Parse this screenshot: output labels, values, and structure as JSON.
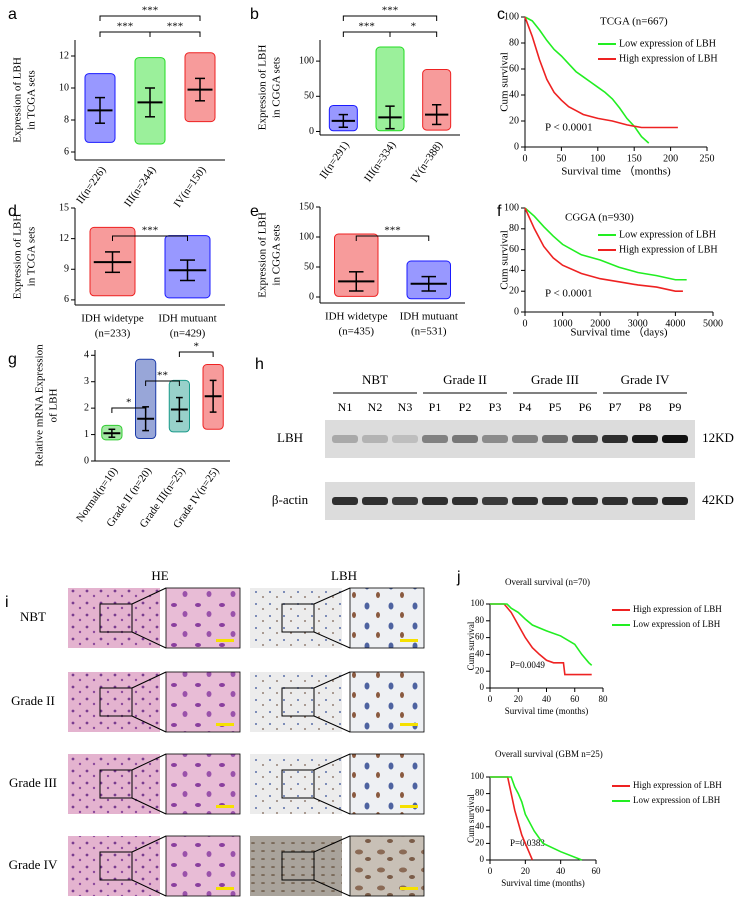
{
  "chart_data": [
    {
      "panel": "a",
      "type": "dot",
      "ylabel": [
        "Expression of LBH",
        "in TCGA sets"
      ],
      "categories": [
        "II(n=226)",
        "III(n=244)",
        "IV(n=150)"
      ],
      "colors": [
        "#1a1aff",
        "#22dd22",
        "#ee2222"
      ],
      "means": [
        8.6,
        9.1,
        9.9
      ],
      "sds": [
        0.8,
        0.9,
        0.7
      ],
      "ranges": [
        [
          6.6,
          10.9
        ],
        [
          6.5,
          11.9
        ],
        [
          7.9,
          12.2
        ]
      ],
      "ylim": [
        5.5,
        13
      ],
      "yticks": [
        6,
        8,
        10,
        12
      ],
      "comparisons": [
        {
          "groups": [
            0,
            1
          ],
          "label": "***"
        },
        {
          "groups": [
            1,
            2
          ],
          "label": "***"
        },
        {
          "groups": [
            0,
            2
          ],
          "label": "***"
        }
      ]
    },
    {
      "panel": "b",
      "type": "dot",
      "ylabel": [
        "Expression of LBH",
        "in CGGA sets"
      ],
      "categories": [
        "II(n=291)",
        "III(n=334)",
        "IV(n=388)"
      ],
      "colors": [
        "#1a1aff",
        "#22dd22",
        "#ee2222"
      ],
      "means": [
        15,
        20,
        24
      ],
      "sds": [
        9,
        16,
        14
      ],
      "ranges": [
        [
          1,
          37
        ],
        [
          1,
          120
        ],
        [
          2,
          88
        ]
      ],
      "ylim": [
        -5,
        130
      ],
      "yticks": [
        0,
        50,
        100
      ],
      "comparisons": [
        {
          "groups": [
            0,
            1
          ],
          "label": "***"
        },
        {
          "groups": [
            1,
            2
          ],
          "label": "*"
        },
        {
          "groups": [
            0,
            2
          ],
          "label": "***"
        }
      ]
    },
    {
      "panel": "c",
      "type": "survival",
      "title": "TCGA (n=667)",
      "xlabel": "Survival time （months)",
      "ylabel": "Cum survival",
      "annotation": "P < 0.0001",
      "xlim": [
        0,
        250
      ],
      "xticks": [
        0,
        50,
        100,
        150,
        200,
        250
      ],
      "ylim": [
        0,
        100
      ],
      "yticks": [
        0,
        20,
        40,
        60,
        80,
        100
      ],
      "series": [
        {
          "name": "Low expression of LBH",
          "color": "#22ee22",
          "x": [
            0,
            10,
            20,
            30,
            40,
            50,
            60,
            70,
            80,
            90,
            100,
            110,
            120,
            130,
            140,
            150,
            160,
            170
          ],
          "values": [
            100,
            97,
            90,
            82,
            75,
            70,
            64,
            58,
            54,
            50,
            46,
            42,
            37,
            30,
            22,
            16,
            8,
            3
          ]
        },
        {
          "name": "High expression of LBH",
          "color": "#ee2222",
          "x": [
            0,
            10,
            20,
            30,
            40,
            50,
            60,
            70,
            80,
            100,
            120,
            140,
            160,
            210
          ],
          "values": [
            100,
            85,
            67,
            52,
            42,
            36,
            31,
            28,
            25,
            22,
            20,
            17,
            15,
            15
          ]
        }
      ]
    },
    {
      "panel": "d",
      "type": "dot",
      "ylabel": [
        "Expression of LBH",
        "in TCGA sets"
      ],
      "categories": [
        [
          "IDH widetype",
          "(n=233)"
        ],
        [
          "IDH mutuant",
          "(n=429)"
        ]
      ],
      "colors": [
        "#ee2222",
        "#1a1aff"
      ],
      "means": [
        9.7,
        8.9
      ],
      "sds": [
        1.0,
        1.0
      ],
      "ranges": [
        [
          6.4,
          13.1
        ],
        [
          6.2,
          12.3
        ]
      ],
      "ylim": [
        5.5,
        15
      ],
      "yticks": [
        6,
        9,
        12,
        15
      ],
      "comparisons": [
        {
          "groups": [
            0,
            1
          ],
          "label": "***"
        }
      ]
    },
    {
      "panel": "e",
      "type": "dot",
      "ylabel": [
        "Expression of LBH",
        "in CGGA sets"
      ],
      "categories": [
        [
          "IDH widetype",
          "(n=435)"
        ],
        [
          "IDH mutuant",
          "(n=531)"
        ]
      ],
      "colors": [
        "#ee2222",
        "#1a1aff"
      ],
      "means": [
        26,
        22
      ],
      "sds": [
        16,
        12
      ],
      "ranges": [
        [
          1,
          105
        ],
        [
          -3,
          60
        ]
      ],
      "ylim": [
        -10,
        150
      ],
      "yticks": [
        0,
        50,
        100,
        150
      ],
      "comparisons": [
        {
          "groups": [
            0,
            1
          ],
          "label": "***"
        }
      ]
    },
    {
      "panel": "f",
      "type": "survival",
      "title": "CGGA (n=930)",
      "xlabel": "Survival time （days)",
      "ylabel": "Cum survival",
      "annotation": "P < 0.0001",
      "xlim": [
        0,
        5000
      ],
      "xticks": [
        0,
        1000,
        2000,
        3000,
        4000,
        5000
      ],
      "ylim": [
        0,
        100
      ],
      "yticks": [
        0,
        20,
        40,
        60,
        80,
        100
      ],
      "series": [
        {
          "name": "Low expression of LBH",
          "color": "#22ee22",
          "x": [
            0,
            250,
            500,
            750,
            1000,
            1500,
            2000,
            2500,
            3000,
            3500,
            4000,
            4300
          ],
          "values": [
            100,
            92,
            82,
            73,
            65,
            55,
            50,
            43,
            38,
            35,
            31,
            31
          ]
        },
        {
          "name": "High expression of LBH",
          "color": "#ee2222",
          "x": [
            0,
            250,
            500,
            750,
            1000,
            1500,
            2000,
            2500,
            3000,
            3500,
            4000,
            4200
          ],
          "values": [
            100,
            80,
            63,
            52,
            45,
            37,
            32,
            29,
            26,
            24,
            20,
            20
          ]
        }
      ]
    },
    {
      "panel": "g",
      "type": "dot",
      "ylabel": [
        "Relative mRNA Expression",
        "of LBH"
      ],
      "categories": [
        "Normal(n=10)",
        "Grade II (n=20)",
        "Grade III(n=25)",
        "Grade IV(n=25)"
      ],
      "colors": [
        "#33cc33",
        "#1a3aa8",
        "#1a9a8a",
        "#ee2222"
      ],
      "means": [
        1.05,
        1.6,
        1.95,
        2.45
      ],
      "sds": [
        0.15,
        0.45,
        0.45,
        0.6
      ],
      "ranges": [
        [
          0.8,
          1.35
        ],
        [
          0.85,
          3.85
        ],
        [
          1.1,
          3.05
        ],
        [
          1.2,
          3.65
        ]
      ],
      "ylim": [
        0,
        4.2
      ],
      "yticks": [
        0,
        1,
        2,
        3,
        4
      ],
      "comparisons": [
        {
          "groups": [
            0,
            1
          ],
          "label": "*"
        },
        {
          "groups": [
            1,
            2
          ],
          "label": "**"
        },
        {
          "groups": [
            2,
            3
          ],
          "label": "*"
        }
      ]
    },
    {
      "panel": "j",
      "type": "survival",
      "title": "Overall survival (n=70)",
      "xlabel": "Survival time  (months)",
      "ylabel": "Cum survival",
      "annotation": "P=0.0049",
      "xlim": [
        0,
        80
      ],
      "xticks": [
        0,
        20,
        40,
        60,
        80
      ],
      "ylim": [
        0,
        100
      ],
      "yticks": [
        0,
        20,
        40,
        60,
        80,
        100
      ],
      "series": [
        {
          "name": "High expression of LBH",
          "color": "#ee2222",
          "x": [
            0,
            10,
            15,
            20,
            25,
            30,
            35,
            40,
            45,
            52,
            53,
            72
          ],
          "values": [
            100,
            100,
            90,
            75,
            60,
            48,
            40,
            33,
            30,
            30,
            16,
            16
          ]
        },
        {
          "name": "Low expression of LBH",
          "color": "#22ee22",
          "x": [
            0,
            12,
            15,
            20,
            25,
            30,
            40,
            50,
            60,
            65,
            70,
            72
          ],
          "values": [
            100,
            100,
            95,
            90,
            82,
            75,
            68,
            62,
            52,
            40,
            30,
            27
          ]
        }
      ]
    },
    {
      "type": "survival",
      "title": "Overall survival (GBM n=25)",
      "xlabel": "Survival time  (months)",
      "ylabel": "Cum survival",
      "annotation": "P=0.0383",
      "xlim": [
        0,
        60
      ],
      "xticks": [
        0,
        20,
        40,
        60
      ],
      "ylim": [
        0,
        100
      ],
      "yticks": [
        0,
        20,
        40,
        60,
        80,
        100
      ],
      "series": [
        {
          "name": "High expression of LBH",
          "color": "#ee2222",
          "x": [
            0,
            10,
            12,
            14,
            16,
            18,
            20,
            22,
            24
          ],
          "values": [
            100,
            100,
            80,
            60,
            45,
            30,
            20,
            10,
            0
          ]
        },
        {
          "name": "Low expression of LBH",
          "color": "#22ee22",
          "x": [
            0,
            12,
            14,
            16,
            18,
            20,
            25,
            30,
            40,
            52
          ],
          "values": [
            100,
            100,
            88,
            80,
            70,
            55,
            35,
            20,
            10,
            0
          ]
        }
      ]
    }
  ],
  "blot": {
    "panel": "h",
    "groups": [
      {
        "label": "NBT",
        "lanes": [
          "N1",
          "N2",
          "N3"
        ]
      },
      {
        "label": "Grade II",
        "lanes": [
          "P1",
          "P2",
          "P3"
        ]
      },
      {
        "label": "Grade III",
        "lanes": [
          "P4",
          "P5",
          "P6"
        ]
      },
      {
        "label": "Grade IV",
        "lanes": [
          "P7",
          "P8",
          "P9"
        ]
      }
    ],
    "rows": [
      {
        "label": "LBH",
        "size": "12KD",
        "intensity": [
          0.25,
          0.2,
          0.15,
          0.45,
          0.5,
          0.4,
          0.45,
          0.55,
          0.7,
          0.85,
          0.95,
          1.0
        ]
      },
      {
        "label": "β-actin",
        "size": "42KD",
        "intensity": [
          0.85,
          0.85,
          0.8,
          0.85,
          0.85,
          0.8,
          0.85,
          0.85,
          0.85,
          0.85,
          0.85,
          0.9
        ]
      }
    ]
  },
  "histology": {
    "panel": "i",
    "columns": [
      "HE",
      "LBH"
    ],
    "rows": [
      "NBT",
      "Grade II",
      "Grade III",
      "Grade IV"
    ]
  }
}
